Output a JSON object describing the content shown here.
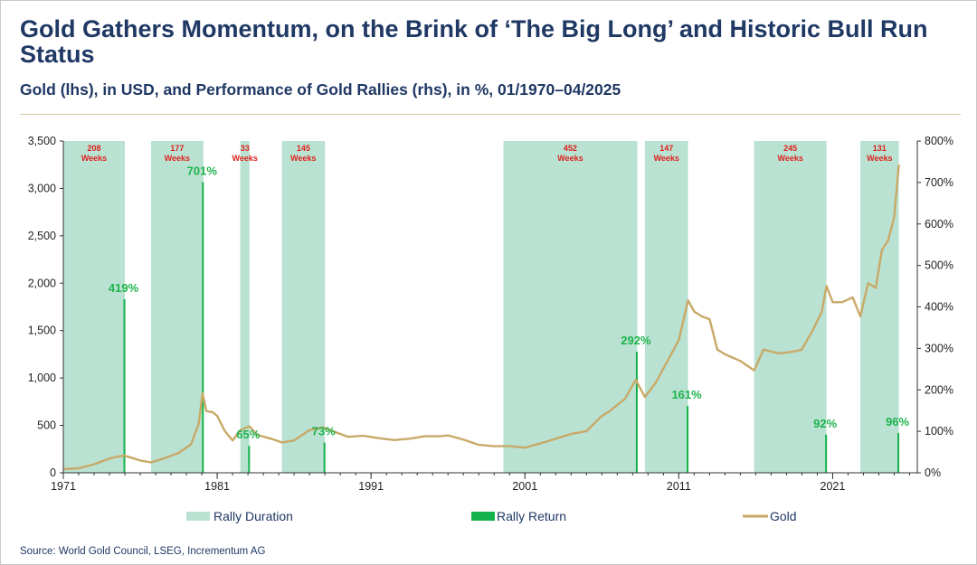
{
  "header": {
    "title": "Gold Gathers Momentum, on the Brink of ‘The Big Long’ and Historic Bull Run Status",
    "subtitle": "Gold (lhs), in USD, and Performance of Gold Rallies (rhs), in %, 01/1970–04/2025"
  },
  "footer": {
    "source": "Source: World Gold Council, LSEG, Incrementum AG"
  },
  "colors": {
    "band": "#b9e2d3",
    "return_bar": "#13b24a",
    "gold_line": "#c8a968",
    "duration_label": "#e0201b",
    "return_label": "#1db34a",
    "title": "#1f3864"
  },
  "chart_data": {
    "type": "line",
    "title": "",
    "xlabel": "",
    "ylabel_left": "",
    "ylabel_right": "",
    "xlim": [
      1971,
      2026.5
    ],
    "ylim_left": [
      0,
      3500
    ],
    "ylim_right": [
      0,
      800
    ],
    "x_ticks": [
      "1971",
      "1981",
      "1991",
      "2001",
      "2011",
      "2021"
    ],
    "y_left_ticks": [
      "0",
      "500",
      "1,000",
      "1,500",
      "2,000",
      "2,500",
      "3,000",
      "3,500"
    ],
    "y_right_ticks": [
      "0%",
      "100%",
      "200%",
      "300%",
      "400%",
      "500%",
      "600%",
      "700%",
      "800%"
    ],
    "grid": false,
    "legend_position": "bottom",
    "legend": [
      "Rally Duration",
      "Rally Return",
      "Gold"
    ],
    "rallies": [
      {
        "start": 1971.0,
        "end": 1975.0,
        "duration": "208",
        "unit": "Weeks",
        "return": 419,
        "return_label": "419%"
      },
      {
        "start": 1976.7,
        "end": 1980.1,
        "duration": "177",
        "unit": "Weeks",
        "return": 701,
        "return_label": "701%"
      },
      {
        "start": 1982.5,
        "end": 1983.1,
        "duration": "33",
        "unit": "Weeks",
        "return": 65,
        "return_label": "65%"
      },
      {
        "start": 1985.2,
        "end": 1988.0,
        "duration": "145",
        "unit": "Weeks",
        "return": 73,
        "return_label": "73%"
      },
      {
        "start": 1999.6,
        "end": 2008.3,
        "duration": "452",
        "unit": "Weeks",
        "return": 292,
        "return_label": "292%"
      },
      {
        "start": 2008.8,
        "end": 2011.6,
        "duration": "147",
        "unit": "Weeks",
        "return": 161,
        "return_label": "161%"
      },
      {
        "start": 2015.9,
        "end": 2020.6,
        "duration": "245",
        "unit": "Weeks",
        "return": 92,
        "return_label": "92%"
      },
      {
        "start": 2022.8,
        "end": 2025.3,
        "duration": "131",
        "unit": "Weeks",
        "return": 96,
        "return_label": "96%"
      }
    ],
    "gold_series": {
      "name": "Gold",
      "x": [
        1971.0,
        1972.0,
        1973.0,
        1973.5,
        1974.0,
        1974.5,
        1975.0,
        1975.5,
        1976.0,
        1976.7,
        1977.5,
        1978.5,
        1979.3,
        1979.8,
        1980.05,
        1980.3,
        1980.7,
        1981.0,
        1981.5,
        1982.0,
        1982.5,
        1983.1,
        1983.6,
        1984.5,
        1985.2,
        1986.0,
        1987.0,
        1987.9,
        1988.5,
        1989.5,
        1990.5,
        1991.5,
        1992.5,
        1993.5,
        1994.5,
        1995.5,
        1996.0,
        1997.0,
        1998.0,
        1999.0,
        1999.6,
        2000.0,
        2001.0,
        2002.0,
        2003.0,
        2004.0,
        2005.0,
        2006.0,
        2006.5,
        2007.5,
        2008.2,
        2008.8,
        2009.5,
        2010.0,
        2010.5,
        2011.0,
        2011.6,
        2012.0,
        2012.5,
        2013.0,
        2013.5,
        2014.0,
        2015.0,
        2015.9,
        2016.5,
        2017.5,
        2018.5,
        2019.0,
        2019.7,
        2020.3,
        2020.6,
        2021.0,
        2021.6,
        2022.3,
        2022.8,
        2023.3,
        2023.8,
        2024.2,
        2024.6,
        2025.0,
        2025.3
      ],
      "values": [
        38,
        48,
        90,
        120,
        150,
        170,
        180,
        155,
        130,
        110,
        150,
        210,
        300,
        520,
        840,
        650,
        640,
        600,
        440,
        340,
        450,
        490,
        400,
        360,
        320,
        340,
        450,
        480,
        440,
        380,
        390,
        365,
        345,
        360,
        385,
        385,
        395,
        350,
        295,
        280,
        280,
        280,
        265,
        310,
        360,
        410,
        440,
        600,
        650,
        780,
        980,
        800,
        950,
        1100,
        1250,
        1400,
        1820,
        1700,
        1650,
        1620,
        1300,
        1250,
        1180,
        1080,
        1300,
        1260,
        1280,
        1300,
        1500,
        1700,
        1970,
        1800,
        1800,
        1850,
        1650,
        2000,
        1950,
        2350,
        2450,
        2700,
        3250
      ]
    }
  }
}
